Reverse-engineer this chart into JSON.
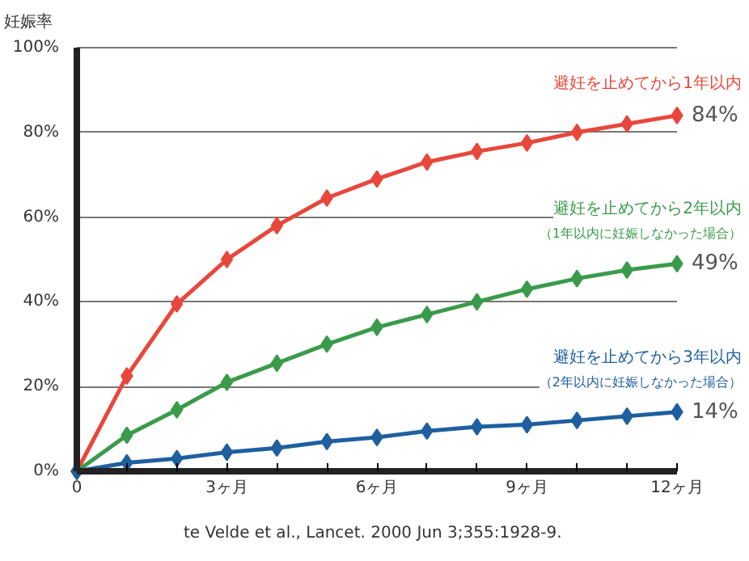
{
  "chart_data": {
    "type": "line",
    "ylabel": "妊娠率",
    "x": [
      0,
      1,
      2,
      3,
      4,
      5,
      6,
      7,
      8,
      9,
      10,
      11,
      12
    ],
    "series": [
      {
        "name": "避妊を止めてから1年以内",
        "color": "#e8473b",
        "values": [
          0,
          22.5,
          39.5,
          50,
          58,
          64.5,
          69,
          73,
          75.5,
          77.5,
          80,
          82,
          84
        ],
        "value_labels": [
          null,
          null,
          null,
          null,
          null,
          null,
          null,
          null,
          null,
          null,
          null,
          null,
          "84%"
        ]
      },
      {
        "name": "避妊を止めてから2年以内",
        "color": "#3a9b4a",
        "values": [
          0,
          8.5,
          14.5,
          21,
          25.5,
          30,
          34,
          37,
          40,
          43,
          45.5,
          47.5,
          49
        ],
        "value_labels": [
          null,
          null,
          null,
          null,
          null,
          null,
          null,
          null,
          null,
          null,
          null,
          null,
          "49%"
        ]
      },
      {
        "name": "避妊を止めてから3年以内",
        "color": "#1e5fa0",
        "values": [
          0,
          2,
          3,
          4.5,
          5.5,
          7,
          8,
          9.5,
          10.5,
          11,
          12,
          13,
          14
        ],
        "value_labels": [
          null,
          null,
          null,
          null,
          null,
          null,
          null,
          null,
          null,
          null,
          null,
          null,
          "14%"
        ]
      }
    ],
    "xlim": [
      0,
      12
    ],
    "xticks": [
      0,
      {
        "value": 1,
        "label": null
      },
      {
        "value": 2,
        "label": null
      },
      {
        "value": 3,
        "label": "3ヶ月"
      },
      {
        "value": 4,
        "label": null
      },
      {
        "value": 5,
        "label": null
      },
      {
        "value": 6,
        "label": "6ヶ月"
      },
      {
        "value": 7,
        "label": null
      },
      {
        "value": 8,
        "label": null
      },
      {
        "value": 9,
        "label": "9ヶ月"
      },
      {
        "value": 10,
        "label": null
      },
      {
        "value": 11,
        "label": null
      },
      {
        "value": 12,
        "label": "12ヶ月"
      }
    ],
    "ylim": [
      0,
      100
    ],
    "yticks": [
      {
        "value": 0,
        "label": "0%"
      },
      {
        "value": 20,
        "label": "20%"
      },
      {
        "value": 40,
        "label": "40%"
      },
      {
        "value": 60,
        "label": "60%"
      },
      {
        "value": 80,
        "label": "80%"
      },
      {
        "value": 100,
        "label": "100%"
      }
    ],
    "grid": "y",
    "marker": "diamond",
    "line_style": "solid",
    "annotations": [
      {
        "text": "（1年以内に妊娠しなかった場合）",
        "x": 12,
        "y": 49
      },
      {
        "text": "（2年以内に妊娠しなかった場合）",
        "x": 12,
        "y": 14
      },
      "te Velde et al.,  Lancet. 2000 Jun 3;355:1928-9."
    ]
  }
}
